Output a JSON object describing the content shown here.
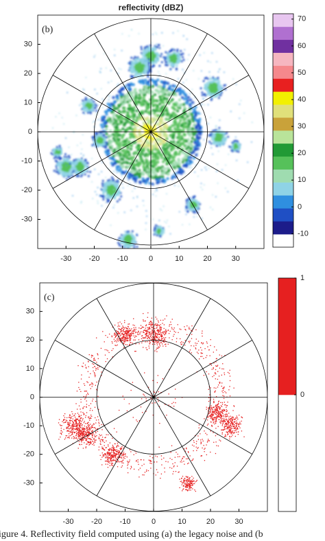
{
  "chart_data": [
    {
      "type": "heatmap",
      "title": "reflectivity (dBZ)",
      "panel_label": "(b)",
      "xlim": [
        -40,
        40
      ],
      "ylim": [
        -40,
        40
      ],
      "xticks": [
        -30,
        -20,
        -10,
        0,
        10,
        20,
        30
      ],
      "yticks": [
        -30,
        -20,
        -10,
        0,
        10,
        20,
        30
      ],
      "colorbar": {
        "clim": [
          -15,
          72
        ],
        "ticks": [
          -10,
          0,
          10,
          20,
          30,
          40,
          50,
          60,
          70
        ],
        "colors": [
          "#ffffff",
          "#1c1c8a",
          "#1f4fc4",
          "#2f8fe0",
          "#8fd3e6",
          "#9fdcb0",
          "#56c15a",
          "#219a35",
          "#b9e49a",
          "#c9a23a",
          "#e0e07a",
          "#f2f000",
          "#e82020",
          "#f5888c",
          "#f6b6c0",
          "#7030a0",
          "#b070d0",
          "#e8c6f0"
        ]
      }
    },
    {
      "type": "heatmap",
      "panel_label": "(c)",
      "xlim": [
        -40,
        40
      ],
      "ylim": [
        -40,
        40
      ],
      "xticks": [
        -30,
        -20,
        -10,
        0,
        10,
        20,
        30
      ],
      "yticks": [
        -30,
        -20,
        -10,
        0,
        10,
        20,
        30
      ],
      "colorbar": {
        "clim": [
          -1,
          1
        ],
        "ticks": [
          0,
          1
        ],
        "colors": [
          "#ffffff",
          "#e62020"
        ]
      }
    }
  ],
  "caption": "igure 4.   Reflectivity field computed using (a) the legacy noise and (b"
}
